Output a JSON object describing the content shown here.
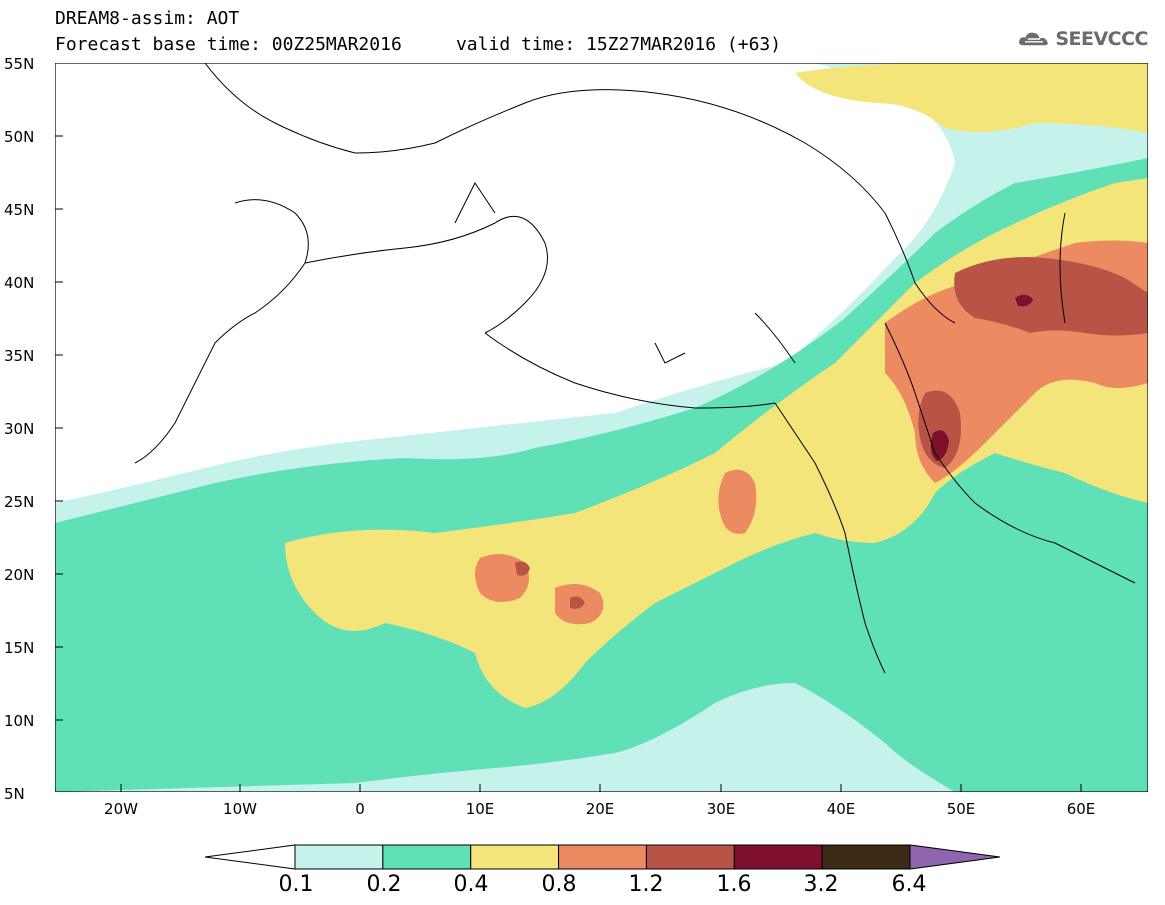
{
  "header": {
    "line1": "DREAM8-assim: AOT",
    "line2": "Forecast base time: 00Z25MAR2016     valid time: 15Z27MAR2016 (+63)"
  },
  "logo": {
    "text": "SEEVCCC",
    "icon": "cloud-icon"
  },
  "map": {
    "lat_labels": [
      "55N",
      "50N",
      "45N",
      "40N",
      "35N",
      "30N",
      "25N",
      "20N",
      "15N",
      "10N",
      "5N"
    ],
    "lon_labels": [
      "20W",
      "10W",
      "0",
      "10E",
      "20E",
      "30E",
      "40E",
      "50E",
      "60E"
    ]
  },
  "colorbar": {
    "labels": [
      "0.1",
      "0.2",
      "0.4",
      "0.8",
      "1.2",
      "1.6",
      "3.2",
      "6.4"
    ],
    "colors": [
      "#ffffff",
      "#c6f2ec",
      "#5fe0b6",
      "#f4e57a",
      "#ec8a62",
      "#b85446",
      "#7e0f2d",
      "#3d2a17",
      "#8f65ad"
    ]
  }
}
